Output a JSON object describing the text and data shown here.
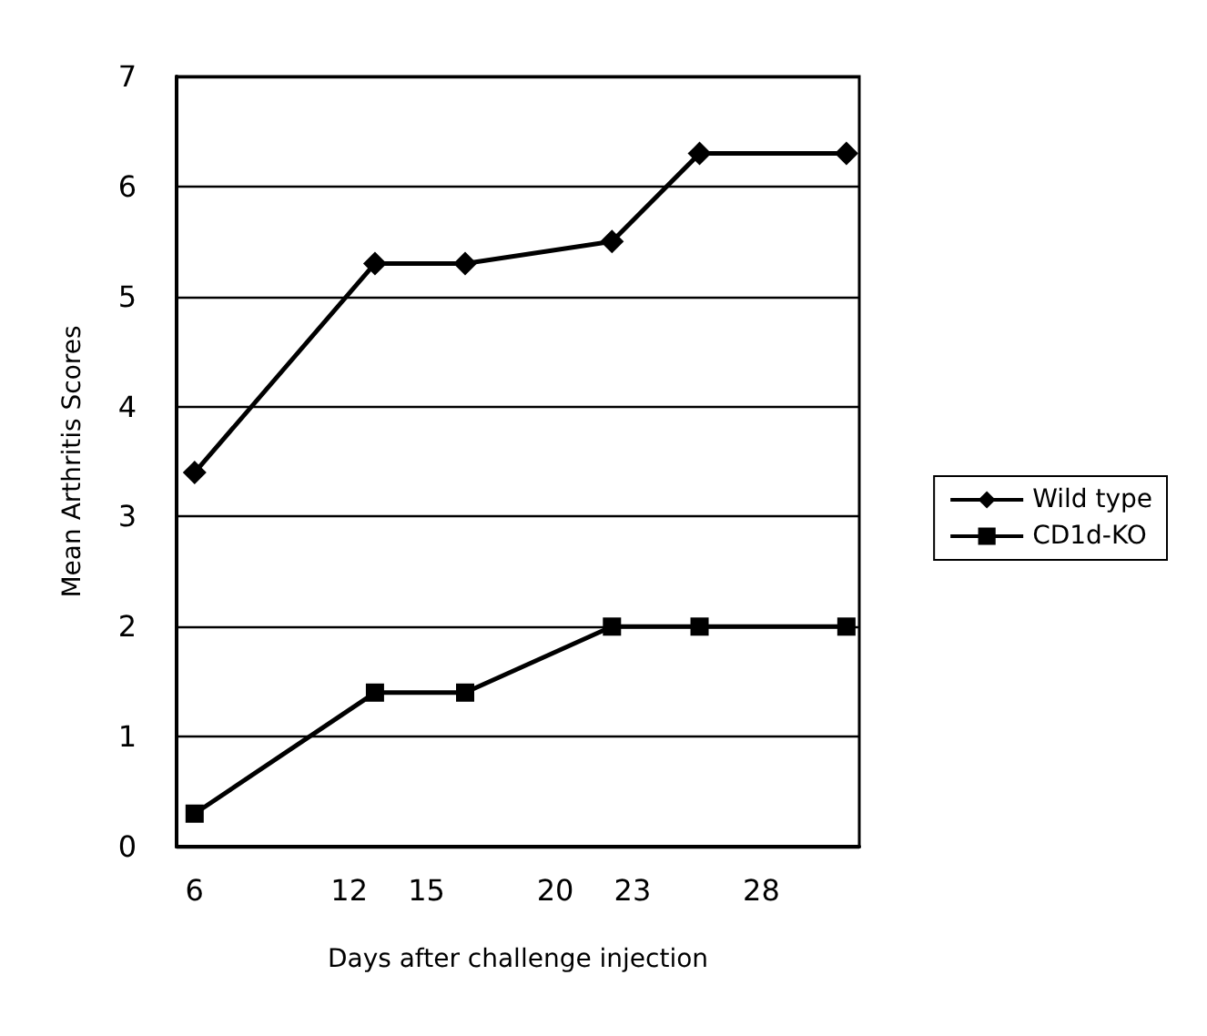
{
  "chart_data": {
    "type": "line",
    "xlabel": "Days after challenge injection",
    "ylabel": "Mean Arthritis Scores",
    "x": [
      6,
      13,
      16.5,
      22.2,
      25.6,
      31.3
    ],
    "series": [
      {
        "name": "Wild type",
        "color": "#000000",
        "marker": "diamond",
        "values": [
          3.4,
          5.3,
          5.3,
          5.5,
          6.3,
          6.3
        ]
      },
      {
        "name": "CD1d-KO",
        "color": "#000000",
        "marker": "square",
        "values": [
          0.3,
          1.4,
          1.4,
          2,
          2,
          2
        ]
      }
    ],
    "xlim": [
      5.3,
      31.8
    ],
    "xticks": [
      6,
      12,
      15,
      20,
      23,
      28
    ],
    "ylim": [
      0,
      7
    ],
    "yticks": [
      0,
      1,
      2,
      3,
      4,
      5,
      6,
      7
    ],
    "grid": "y",
    "legend": "right",
    "line_style": "solid"
  }
}
